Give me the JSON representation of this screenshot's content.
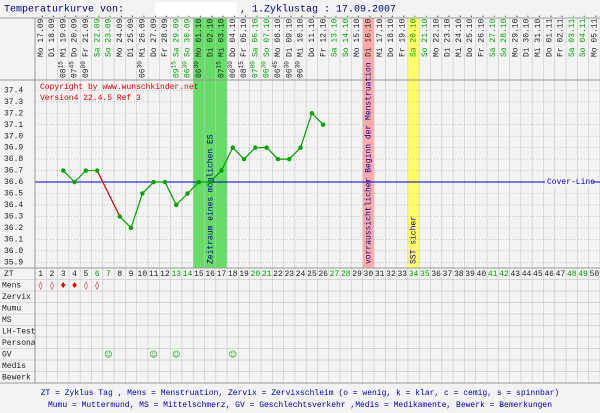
{
  "header": {
    "title": "Temperaturkurve von:",
    "cycle_start": ", 1.Zyklustag : 17.09.2007"
  },
  "chart_data": {
    "type": "line",
    "x": [
      "Mo 17.09.",
      "Di 18.09.",
      "Mi 19.09.",
      "Do 20.09.",
      "Fr 21.09.",
      "Sa 22.09.",
      "So 23.09.",
      "Mo 24.09.",
      "Di 25.09.",
      "Mi 26.09.",
      "Do 27.09.",
      "Fr 28.09.",
      "Sa 29.09.",
      "So 30.09.",
      "Mo 01.10.",
      "Di 02.10.",
      "Mi 03.10.",
      "Do 04.10.",
      "Fr 05.10.",
      "Sa 06.10.",
      "So 07.10.",
      "Mo 08.10.",
      "Di 09.10.",
      "Mi 10.10.",
      "Do 11.10.",
      "Fr 12.10.",
      "Sa 13.10.",
      "So 14.10.",
      "Mo 15.10.",
      "Di 16.10.",
      "Mi 17.10.",
      "Do 18.10.",
      "Fr 19.10.",
      "Sa 20.10.",
      "So 21.10.",
      "Mo 22.10.",
      "Di 23.10.",
      "Mi 24.10.",
      "Do 25.10.",
      "Fr 26.10.",
      "Sa 27.10.",
      "So 28.10.",
      "Mo 29.10.",
      "Di 30.10.",
      "Mi 31.10.",
      "Do 01.11.",
      "Fr 02.11.",
      "Sa 03.11.",
      "So 04.11.",
      "Mo 05.11."
    ],
    "time_hours": [
      null,
      null,
      "08",
      "07",
      "09",
      null,
      null,
      null,
      null,
      "06",
      null,
      null,
      "09",
      "06",
      "06",
      null,
      "07",
      "06",
      "08",
      "07",
      "06",
      "06",
      "06",
      "06",
      null,
      null,
      null,
      null,
      null,
      null,
      null,
      null,
      null,
      null,
      null,
      null,
      null,
      null,
      null,
      null,
      null,
      null,
      null,
      null,
      null,
      null,
      null,
      null,
      null,
      null
    ],
    "time_minutes": [
      null,
      null,
      "15",
      "45",
      "00",
      null,
      null,
      null,
      null,
      "30",
      null,
      null,
      "15",
      "30",
      "30",
      null,
      "15",
      "30",
      "15",
      "00",
      "30",
      "45",
      "30",
      "30",
      null,
      null,
      null,
      null,
      null,
      null,
      null,
      null,
      null,
      null,
      null,
      null,
      null,
      null,
      null,
      null,
      null,
      null,
      null,
      null,
      null,
      null,
      null,
      null,
      null,
      null
    ],
    "zt": [
      1,
      2,
      3,
      4,
      5,
      6,
      7,
      8,
      9,
      10,
      11,
      12,
      13,
      14,
      15,
      16,
      17,
      18,
      19,
      20,
      21,
      22,
      23,
      24,
      25,
      26,
      27,
      28,
      29,
      30,
      31,
      32,
      33,
      34,
      35,
      36,
      37,
      38,
      39,
      40,
      41,
      42,
      43,
      44,
      45,
      46,
      47,
      48,
      49,
      50
    ],
    "weekend_days": [
      6,
      7,
      13,
      14,
      20,
      21,
      27,
      28,
      34,
      35,
      41,
      42,
      48,
      49
    ],
    "weekend_color": "#00a000",
    "values": [
      null,
      null,
      36.7,
      36.6,
      36.7,
      36.7,
      null,
      36.3,
      36.2,
      36.5,
      36.6,
      36.6,
      36.4,
      36.5,
      36.6,
      36.6,
      36.7,
      36.9,
      36.8,
      36.9,
      36.9,
      36.8,
      36.8,
      36.9,
      37.2,
      37.1,
      null,
      null,
      null,
      null,
      null,
      null,
      null,
      null,
      null,
      null,
      null,
      null,
      null,
      null,
      null,
      null,
      null,
      null,
      null,
      null,
      null,
      null,
      null,
      null
    ],
    "color": "#00a000",
    "gap_color": "#e00000",
    "ylim": [
      35.85,
      37.49
    ],
    "yticks": [
      37.4,
      37.3,
      37.2,
      37.1,
      {
        "value": 37,
        "label": "37.0"
      },
      36.9,
      36.8,
      36.7,
      36.6,
      36.5,
      36.4,
      36.3,
      36.2,
      36.1,
      {
        "value": 36,
        "label": "36.0"
      },
      35.9
    ],
    "grid": true,
    "annotations": [
      "Copyright by www.wunschkinder.net",
      "Version4 22.4.5 Ref 3"
    ],
    "cover_line": {
      "value": 36.6,
      "label": "Cover-Line",
      "color": "#0000cc"
    },
    "bands": [
      {
        "from": 15,
        "to": 17,
        "color": "#66dd66",
        "label": "Zeitraum eines möglichen ES"
      },
      {
        "from": 30,
        "to": 30,
        "color": "#ffaaaa",
        "label": "vorraussichtlicher Beginn der Menstruation"
      },
      {
        "from": 34,
        "to": 34,
        "color": "#ffff66",
        "label": "SST sicher"
      }
    ]
  },
  "table": {
    "header": "ZT",
    "rows": [
      {
        "label": "Mens",
        "color": "#dd0000",
        "entries": {
          "1": "◊",
          "2": "◊",
          "3": "♦",
          "4": "♦",
          "5": "◊",
          "6": "◊"
        }
      },
      {
        "label": "Zervix",
        "entries": {}
      },
      {
        "label": "Mumu",
        "entries": {}
      },
      {
        "label": "MS",
        "entries": {}
      },
      {
        "label": "LH-Test",
        "entries": {}
      },
      {
        "label": "Persona",
        "entries": {}
      },
      {
        "label": "GV",
        "color": "#00a000",
        "entries": {
          "7": "☺",
          "11": "☺",
          "13": "☺",
          "18": "☺"
        }
      },
      {
        "label": "Medis",
        "entries": {}
      },
      {
        "label": "Bewerk",
        "entries": {}
      }
    ]
  },
  "footer": [
    "ZT = Zyklus Tag , Mens = Menstruation, Zervix = Zervixschleim (o = wenig, k = klar, c = cemig, s = spinnbar)",
    "Mumu = Muttermund, MS = Mittelschmerz, GV = Geschlechtsverkehr ,Medis = Medikamente, Bewerk = Bemerkungen"
  ]
}
